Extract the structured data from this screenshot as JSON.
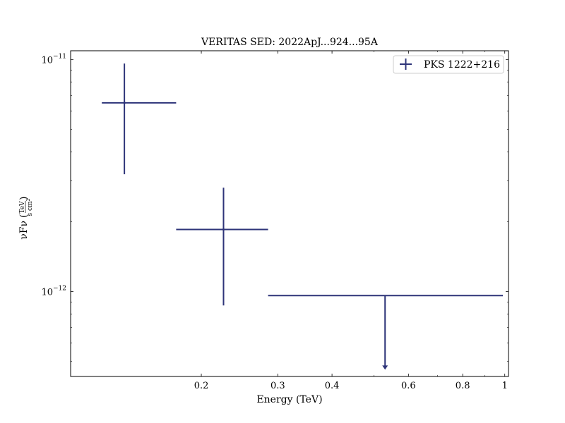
{
  "chart_data": {
    "type": "scatter",
    "title": "VERITAS SED: 2022ApJ...924...95A",
    "xlabel": "Energy (TeV)",
    "ylabel": "νFν (TeV / (s cm²))",
    "ylabel_main": "νFν",
    "ylabel_unit_num": "TeV",
    "ylabel_unit_den": "s cm",
    "ylabel_unit_exp": "2",
    "xscale": "log",
    "yscale": "log",
    "xlim": [
      0.1,
      1.02
    ],
    "ylim": [
      4.3e-13,
      1.09e-11
    ],
    "grid": false,
    "legend_position": "top-right",
    "x_ticks": [
      {
        "value": 0.2,
        "label": "0.2"
      },
      {
        "value": 0.3,
        "label": "0.3"
      },
      {
        "value": 0.4,
        "label": "0.4"
      },
      {
        "value": 0.6,
        "label": "0.6"
      },
      {
        "value": 0.8,
        "label": "0.8"
      },
      {
        "value": 1.0,
        "label": "1"
      }
    ],
    "y_ticks": [
      {
        "value": 1e-11,
        "base": "10",
        "exponent": "−11"
      },
      {
        "value": 1e-12,
        "base": "10",
        "exponent": "−12"
      }
    ],
    "series": [
      {
        "name": "PKS 1222+216",
        "color": "#2e3479",
        "points": [
          {
            "x": 0.133,
            "x_low": 0.118,
            "x_high": 0.175,
            "y": 6.5e-12,
            "y_low": 3.2e-12,
            "y_high": 9.6e-12,
            "upper_limit": false
          },
          {
            "x": 0.225,
            "x_low": 0.175,
            "x_high": 0.285,
            "y": 1.85e-12,
            "y_low": 8.7e-13,
            "y_high": 2.8e-12,
            "upper_limit": false
          },
          {
            "x": 0.53,
            "x_low": 0.285,
            "x_high": 0.99,
            "y": 9.6e-13,
            "y_low": 4.6e-13,
            "y_high": 9.6e-13,
            "upper_limit": true
          }
        ]
      }
    ]
  }
}
